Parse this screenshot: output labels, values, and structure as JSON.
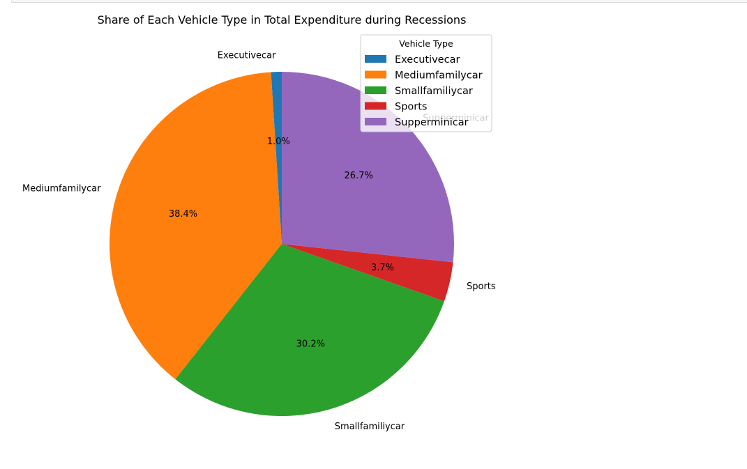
{
  "chart_data": {
    "type": "pie",
    "title": "Share of Each Vehicle Type in Total Expenditure during Recessions",
    "categories": [
      "Executivecar",
      "Mediumfamilycar",
      "Smallfamiliycar",
      "Sports",
      "Supperminicar"
    ],
    "values": [
      1.0,
      38.4,
      30.2,
      3.7,
      26.7
    ],
    "percent_labels": [
      "1.0%",
      "38.4%",
      "30.2%",
      "3.7%",
      "26.7%"
    ],
    "colors": [
      "#1f77b4",
      "#ff7f0e",
      "#2ca02c",
      "#d62728",
      "#9467bd"
    ],
    "start_angle_deg": 90,
    "direction": "counterclockwise",
    "legend": {
      "title": "Vehicle Type",
      "placement": "top-right",
      "entries": [
        "Executivecar",
        "Mediumfamilycar",
        "Smallfamiliycar",
        "Sports",
        "Supperminicar"
      ]
    }
  }
}
